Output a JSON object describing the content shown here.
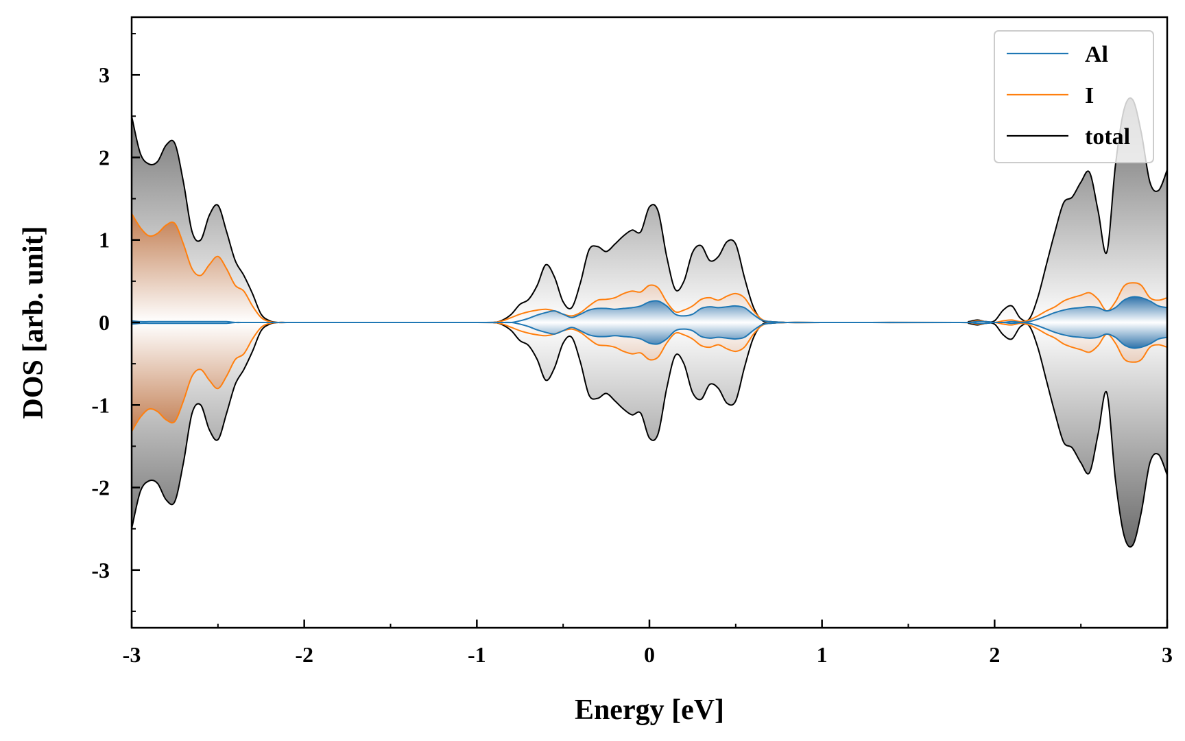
{
  "chart_data": {
    "type": "area",
    "title": "",
    "xlabel": "Energy [eV]",
    "ylabel": "DOS [arb. unit]",
    "xlim": [
      -3,
      3
    ],
    "ylim": [
      -3.7,
      3.7
    ],
    "xticks": [
      -3,
      -2,
      -1,
      0,
      1,
      2,
      3
    ],
    "xtick_labels": [
      "-3",
      "-2",
      "-1",
      "0",
      "1",
      "2",
      "3"
    ],
    "yticks": [
      -3,
      -2,
      -1,
      0,
      1,
      2,
      3
    ],
    "ytick_labels": [
      "-3",
      "-2",
      "-1",
      "0",
      "1",
      "2",
      "3"
    ],
    "symmetric_about_zero": true,
    "legend": {
      "position": "top-right"
    },
    "x": [
      -3.0,
      -2.95,
      -2.9,
      -2.85,
      -2.8,
      -2.75,
      -2.7,
      -2.65,
      -2.6,
      -2.55,
      -2.5,
      -2.45,
      -2.4,
      -2.35,
      -2.3,
      -2.25,
      -2.2,
      -2.15,
      -2.1,
      -2.0,
      -1.0,
      -0.9,
      -0.85,
      -0.8,
      -0.75,
      -0.7,
      -0.65,
      -0.6,
      -0.55,
      -0.5,
      -0.45,
      -0.4,
      -0.35,
      -0.3,
      -0.25,
      -0.2,
      -0.15,
      -0.1,
      -0.05,
      0.0,
      0.05,
      0.1,
      0.15,
      0.2,
      0.25,
      0.3,
      0.35,
      0.4,
      0.45,
      0.5,
      0.55,
      0.6,
      0.65,
      0.7,
      0.8,
      1.0,
      1.8,
      1.85,
      1.9,
      1.95,
      2.0,
      2.05,
      2.1,
      2.15,
      2.2,
      2.25,
      2.3,
      2.35,
      2.4,
      2.45,
      2.5,
      2.55,
      2.6,
      2.65,
      2.7,
      2.75,
      2.8,
      2.85,
      2.9,
      2.95,
      3.0
    ],
    "series": [
      {
        "name": "Al",
        "color": "#1f77b4",
        "values": [
          0.02,
          0.01,
          0.01,
          0.01,
          0.01,
          0.01,
          0.01,
          0.01,
          0.01,
          0.01,
          0.01,
          0.01,
          0.0,
          0.0,
          0.0,
          0.0,
          0.0,
          0.0,
          0.0,
          0.0,
          0.0,
          0.0,
          0.0,
          0.0,
          0.02,
          0.05,
          0.09,
          0.12,
          0.14,
          0.1,
          0.06,
          0.1,
          0.15,
          0.17,
          0.17,
          0.16,
          0.17,
          0.18,
          0.2,
          0.25,
          0.26,
          0.2,
          0.1,
          0.08,
          0.1,
          0.17,
          0.19,
          0.18,
          0.19,
          0.2,
          0.18,
          0.1,
          0.03,
          0.01,
          0.0,
          0.0,
          0.0,
          0.0,
          0.01,
          0.01,
          0.0,
          0.0,
          -0.01,
          0.0,
          0.01,
          0.04,
          0.08,
          0.12,
          0.15,
          0.17,
          0.18,
          0.19,
          0.18,
          0.14,
          0.18,
          0.27,
          0.31,
          0.3,
          0.26,
          0.2,
          0.18
        ]
      },
      {
        "name": "I",
        "color": "#ff7f0e",
        "values": [
          1.32,
          1.15,
          1.05,
          1.08,
          1.18,
          1.2,
          0.95,
          0.65,
          0.57,
          0.7,
          0.8,
          0.65,
          0.45,
          0.38,
          0.2,
          0.06,
          0.01,
          0.0,
          0.0,
          0.0,
          0.0,
          0.0,
          0.02,
          0.06,
          0.1,
          0.13,
          0.15,
          0.16,
          0.14,
          0.1,
          0.08,
          0.12,
          0.2,
          0.27,
          0.28,
          0.3,
          0.35,
          0.38,
          0.37,
          0.45,
          0.42,
          0.25,
          0.13,
          0.15,
          0.2,
          0.28,
          0.3,
          0.27,
          0.32,
          0.35,
          0.3,
          0.15,
          0.04,
          0.01,
          0.0,
          0.0,
          0.0,
          0.0,
          0.02,
          0.01,
          0.0,
          0.02,
          0.03,
          0.01,
          0.03,
          0.08,
          0.14,
          0.19,
          0.26,
          0.3,
          0.33,
          0.36,
          0.28,
          0.14,
          0.25,
          0.44,
          0.48,
          0.45,
          0.3,
          0.27,
          0.3
        ]
      },
      {
        "name": "total",
        "color": "#000000",
        "values": [
          2.5,
          2.05,
          1.92,
          1.95,
          2.15,
          2.17,
          1.7,
          1.1,
          1.0,
          1.3,
          1.42,
          1.1,
          0.75,
          0.57,
          0.35,
          0.1,
          0.02,
          0.0,
          0.0,
          0.0,
          0.0,
          0.0,
          0.03,
          0.1,
          0.22,
          0.28,
          0.45,
          0.7,
          0.55,
          0.25,
          0.18,
          0.48,
          0.88,
          0.92,
          0.86,
          0.95,
          1.05,
          1.12,
          1.1,
          1.4,
          1.35,
          0.8,
          0.4,
          0.5,
          0.85,
          0.93,
          0.75,
          0.8,
          0.98,
          0.95,
          0.55,
          0.2,
          0.03,
          0.01,
          0.0,
          0.0,
          0.0,
          0.01,
          0.03,
          0.01,
          0.02,
          0.15,
          0.2,
          0.05,
          0.04,
          0.3,
          0.7,
          1.1,
          1.45,
          1.52,
          1.7,
          1.82,
          1.35,
          0.85,
          1.9,
          2.58,
          2.7,
          2.3,
          1.7,
          1.6,
          1.85
        ]
      }
    ]
  }
}
